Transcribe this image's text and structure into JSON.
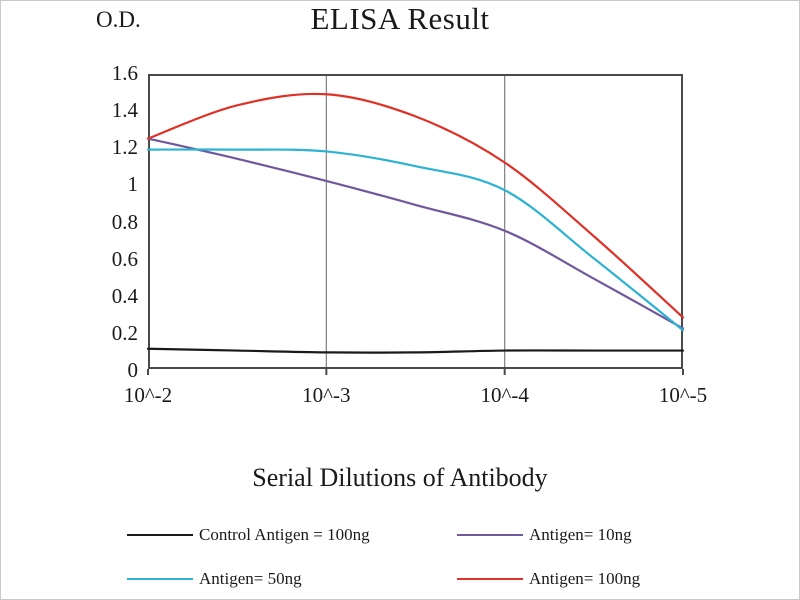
{
  "chart_data": {
    "type": "line",
    "title": "ELISA Result",
    "ylabel": "O.D.",
    "xlabel": "Serial Dilutions of Antibody",
    "x_tick_labels": [
      "10^-2",
      "10^-3",
      "10^-4",
      "10^-5"
    ],
    "y_tick_labels": [
      "1.6",
      "1.4",
      "1.2",
      "1",
      "0.8",
      "0.6",
      "0.4",
      "0.2",
      "0"
    ],
    "ylim": [
      0,
      1.6
    ],
    "xlim": [
      0,
      3
    ],
    "grid_x_positions": [
      1,
      2
    ],
    "legend_position": "bottom",
    "axis_color": "#4a4a4a",
    "grid_color": "#808080",
    "series": [
      {
        "name": "Control Antigen = 100ng",
        "color": "#1a1a1a",
        "x": [
          0,
          0.5,
          1,
          1.5,
          2,
          2.5,
          3
        ],
        "values": [
          0.11,
          0.1,
          0.09,
          0.09,
          0.1,
          0.1,
          0.1
        ]
      },
      {
        "name": "Antigen= 10ng",
        "color": "#71589e",
        "x": [
          0,
          0.5,
          1,
          1.5,
          2,
          2.5,
          3
        ],
        "values": [
          1.25,
          1.14,
          1.02,
          0.89,
          0.75,
          0.49,
          0.22
        ]
      },
      {
        "name": "Antigen= 50ng",
        "color": "#2cb3d4",
        "x": [
          0,
          0.5,
          1,
          1.5,
          2,
          2.5,
          3
        ],
        "values": [
          1.19,
          1.19,
          1.18,
          1.1,
          0.97,
          0.6,
          0.21
        ]
      },
      {
        "name": "Antigen= 100ng",
        "color": "#e03127",
        "x": [
          0,
          0.5,
          1,
          1.5,
          2,
          2.5,
          3
        ],
        "values": [
          1.25,
          1.43,
          1.49,
          1.37,
          1.12,
          0.72,
          0.28
        ]
      }
    ]
  }
}
